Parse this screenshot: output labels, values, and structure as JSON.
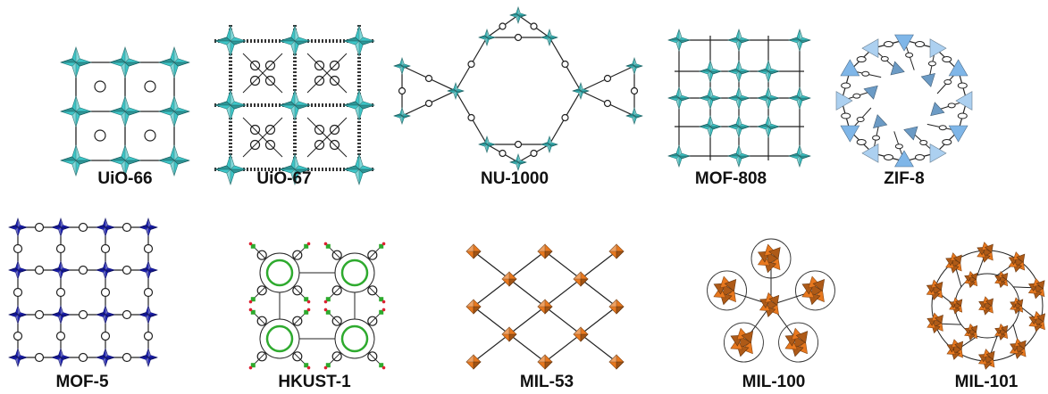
{
  "structures": [
    {
      "label": "UiO-66",
      "color": "#3cc6c8"
    },
    {
      "label": "UiO-67",
      "color": "#3cc6c8"
    },
    {
      "label": "NU-1000",
      "color": "#3cc6c8"
    },
    {
      "label": "MOF-808",
      "color": "#3cc6c8"
    },
    {
      "label": "ZIF-8",
      "color": "#7fb6e8"
    },
    {
      "label": "MOF-5",
      "color": "#1a1fbf"
    },
    {
      "label": "HKUST-1",
      "color": "#2eaa2e"
    },
    {
      "label": "MIL-53",
      "color": "#e8781e"
    },
    {
      "label": "MIL-100",
      "color": "#e8781e"
    },
    {
      "label": "MIL-101",
      "color": "#e8781e"
    }
  ]
}
